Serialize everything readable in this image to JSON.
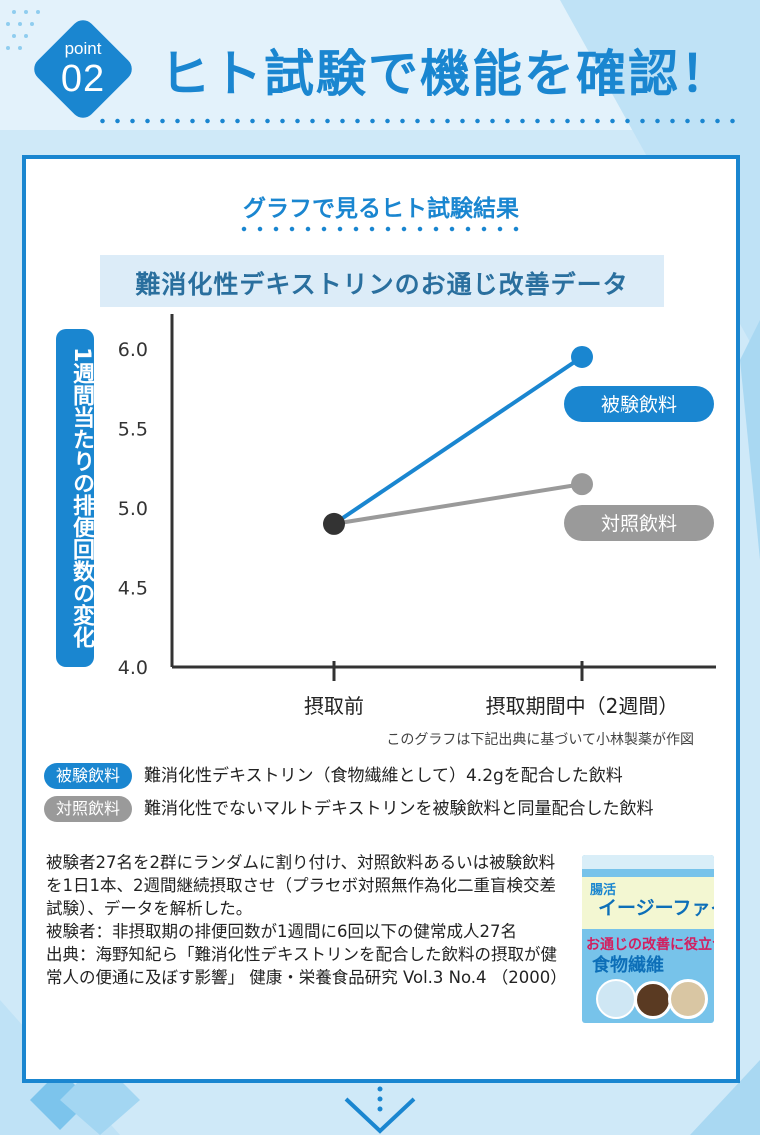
{
  "header": {
    "point_label": "point",
    "point_number": "02",
    "title": "ヒト試験で機能を確認！"
  },
  "card": {
    "subtitle": "グラフで見るヒト試験結果",
    "chart_title": "難消化性デキストリンのお通じ改善データ",
    "note": "このグラフは下記出典に基づいて小林製薬が作図"
  },
  "legend": [
    {
      "tag": "被験飲料",
      "text": "難消化性デキストリン（食物繊維として）4.2gを配合した飲料",
      "color": "#1a86d0"
    },
    {
      "tag": "対照飲料",
      "text": "難消化性でないマルトデキストリンを被験飲料と同量配合した飲料",
      "color": "#9a9a9a"
    }
  ],
  "description": "被験者27名を2群にランダムに割り付け、対照飲料あるいは被験飲料を1日1本、2週間継続摂取させ（プラセボ対照無作為化二重盲検交差試験）、データを解析した。\n被験者：非摂取期の排便回数が1週間に6回以下の健常成人27名\n出典：海野知紀ら「難消化性デキストリンを配合した飲料の摂取が健常人の便通に及ぼす影響」 健康・栄養食品研究 Vol.3 No.4 （2000）",
  "product": {
    "top": "",
    "label1": "腸活",
    "label2": "イージーファイバー",
    "label3": "お通じの改善に役立つ",
    "label4": "食物繊維"
  },
  "chart_data": {
    "type": "line",
    "title": "難消化性デキストリンのお通じ改善データ",
    "ylabel": "1週間当たりの排便回数の変化",
    "xlabel": "",
    "categories": [
      "摂取前",
      "摂取期間中（2週間）"
    ],
    "ylim": [
      4.0,
      6.0
    ],
    "yticks": [
      "4.0",
      "4.5",
      "5.0",
      "5.5",
      "6.0"
    ],
    "series": [
      {
        "name": "被験飲料",
        "values": [
          4.9,
          5.95
        ],
        "color": "#1a86d0"
      },
      {
        "name": "対照飲料",
        "values": [
          4.9,
          5.15
        ],
        "color": "#9a9a9a"
      }
    ],
    "start_color": "#333333",
    "grid": false,
    "legend": "right"
  }
}
